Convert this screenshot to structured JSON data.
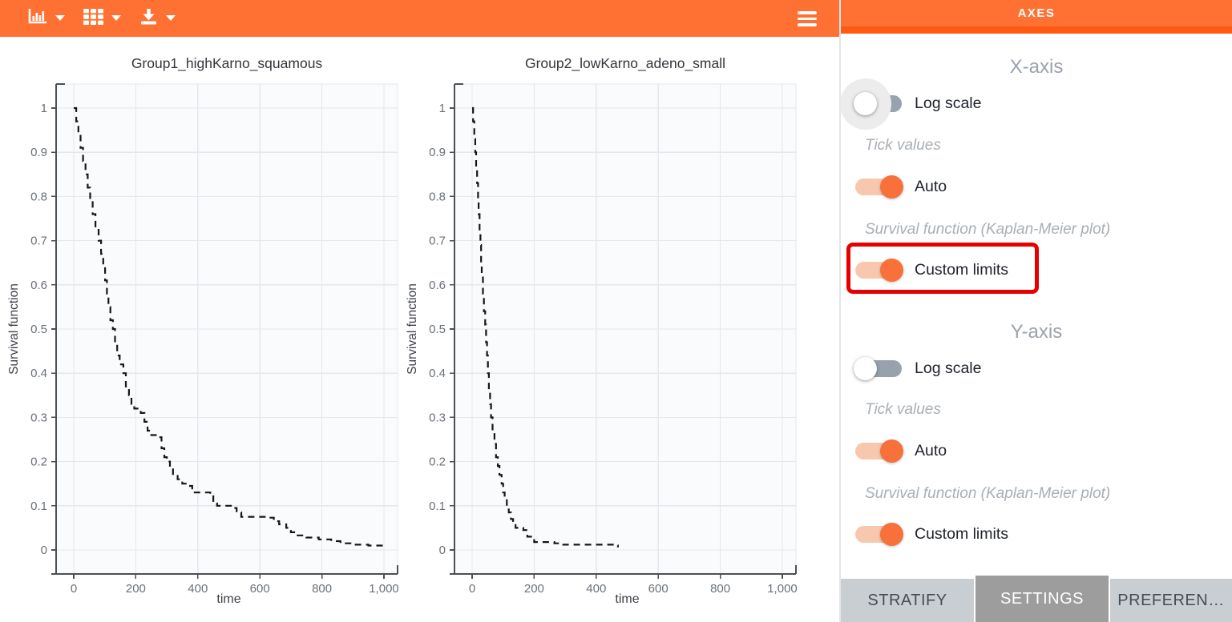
{
  "toolbar": {
    "icons": [
      {
        "name": "chart-type-icon",
        "dropdown": true
      },
      {
        "name": "layout-grid-icon",
        "dropdown": true
      },
      {
        "name": "download-icon",
        "dropdown": true
      },
      {
        "name": "menu-icon",
        "dropdown": false
      }
    ],
    "colors": {
      "background": "#ff7133",
      "icon": "#ffffff"
    }
  },
  "panel": {
    "header": "AXES",
    "colors": {
      "header_bg": "#ff7133",
      "header_strip": "#ff5a14",
      "toggle_on_knob": "#f8703a",
      "toggle_on_track": "#f7c7ae",
      "toggle_off_track": "#98a2ad",
      "highlight_border": "#e60000"
    },
    "x_axis": {
      "heading": "X-axis",
      "log_scale": {
        "label": "Log scale",
        "state": "off"
      },
      "tick_values_caption": "Tick values",
      "auto": {
        "label": "Auto",
        "state": "on"
      },
      "limits_caption": "Survival function (Kaplan-Meier plot)",
      "custom_limits": {
        "label": "Custom limits",
        "state": "on",
        "highlighted": true
      }
    },
    "y_axis": {
      "heading": "Y-axis",
      "log_scale": {
        "label": "Log scale",
        "state": "off"
      },
      "tick_values_caption": "Tick values",
      "auto": {
        "label": "Auto",
        "state": "on"
      },
      "limits_caption": "Survival function (Kaplan-Meier plot)",
      "custom_limits": {
        "label": "Custom limits",
        "state": "on",
        "highlighted": false
      }
    },
    "tabs": [
      {
        "label": "STRATIFY",
        "state": "inactive"
      },
      {
        "label": "SETTINGS",
        "state": "active"
      },
      {
        "label": "PREFEREN…",
        "state": "inactive"
      }
    ]
  },
  "chart_data": [
    {
      "type": "line",
      "subtype": "kaplan-meier-step",
      "title": "Group1_highKarno_squamous",
      "xlabel": "time",
      "ylabel": "Survival function",
      "xlim": [
        0,
        1000
      ],
      "ylim": [
        0,
        1
      ],
      "xticks": [
        0,
        200,
        400,
        600,
        800,
        1000
      ],
      "xtick_labels": [
        "0",
        "200",
        "400",
        "600",
        "800",
        "1,000"
      ],
      "yticks": [
        0,
        0.1,
        0.2,
        0.3,
        0.4,
        0.5,
        0.6,
        0.7,
        0.8,
        0.9,
        1
      ],
      "ytick_labels": [
        "0",
        "0.1",
        "0.2",
        "0.3",
        "0.4",
        "0.5",
        "0.6",
        "0.7",
        "0.8",
        "0.9",
        "1"
      ],
      "grid": true,
      "line_color": "#161616",
      "line_style": "dashed",
      "steps": [
        [
          0,
          1
        ],
        [
          8,
          0.97
        ],
        [
          15,
          0.94
        ],
        [
          22,
          0.91
        ],
        [
          30,
          0.88
        ],
        [
          38,
          0.85
        ],
        [
          45,
          0.82
        ],
        [
          53,
          0.79
        ],
        [
          61,
          0.76
        ],
        [
          70,
          0.73
        ],
        [
          80,
          0.7
        ],
        [
          88,
          0.67
        ],
        [
          95,
          0.64
        ],
        [
          101,
          0.61
        ],
        [
          107,
          0.58
        ],
        [
          112,
          0.55
        ],
        [
          118,
          0.52
        ],
        [
          126,
          0.5
        ],
        [
          133,
          0.47
        ],
        [
          140,
          0.44
        ],
        [
          148,
          0.42
        ],
        [
          160,
          0.4
        ],
        [
          168,
          0.37
        ],
        [
          178,
          0.35
        ],
        [
          186,
          0.33
        ],
        [
          195,
          0.32
        ],
        [
          216,
          0.31
        ],
        [
          228,
          0.29
        ],
        [
          238,
          0.27
        ],
        [
          250,
          0.26
        ],
        [
          270,
          0.255
        ],
        [
          283,
          0.23
        ],
        [
          292,
          0.21
        ],
        [
          300,
          0.2
        ],
        [
          310,
          0.185
        ],
        [
          320,
          0.17
        ],
        [
          335,
          0.16
        ],
        [
          350,
          0.15
        ],
        [
          365,
          0.145
        ],
        [
          382,
          0.135
        ],
        [
          390,
          0.13
        ],
        [
          440,
          0.125
        ],
        [
          450,
          0.105
        ],
        [
          462,
          0.1
        ],
        [
          510,
          0.095
        ],
        [
          525,
          0.085
        ],
        [
          540,
          0.075
        ],
        [
          620,
          0.073
        ],
        [
          645,
          0.065
        ],
        [
          662,
          0.058
        ],
        [
          685,
          0.05
        ],
        [
          700,
          0.04
        ],
        [
          715,
          0.033
        ],
        [
          750,
          0.028
        ],
        [
          790,
          0.024
        ],
        [
          830,
          0.02
        ],
        [
          860,
          0.015
        ],
        [
          900,
          0.012
        ],
        [
          950,
          0.01
        ],
        [
          1000,
          0.009
        ]
      ]
    },
    {
      "type": "line",
      "subtype": "kaplan-meier-step",
      "title": "Group2_lowKarno_adeno_small",
      "xlabel": "time",
      "ylabel": "Survival function",
      "xlim": [
        0,
        1000
      ],
      "ylim": [
        0,
        1
      ],
      "xticks": [
        0,
        200,
        400,
        600,
        800,
        1000
      ],
      "xtick_labels": [
        "0",
        "200",
        "400",
        "600",
        "800",
        "1,000"
      ],
      "yticks": [
        0,
        0.1,
        0.2,
        0.3,
        0.4,
        0.5,
        0.6,
        0.7,
        0.8,
        0.9,
        1
      ],
      "ytick_labels": [
        "0",
        "0.1",
        "0.2",
        "0.3",
        "0.4",
        "0.5",
        "0.6",
        "0.7",
        "0.8",
        "0.9",
        "1"
      ],
      "grid": true,
      "line_color": "#161616",
      "line_style": "dashed",
      "steps": [
        [
          0,
          1
        ],
        [
          3,
          0.97
        ],
        [
          7,
          0.93
        ],
        [
          10,
          0.9
        ],
        [
          13,
          0.86
        ],
        [
          16,
          0.83
        ],
        [
          19,
          0.79
        ],
        [
          21,
          0.76
        ],
        [
          24,
          0.72
        ],
        [
          27,
          0.69
        ],
        [
          29,
          0.65
        ],
        [
          31,
          0.62
        ],
        [
          35,
          0.58
        ],
        [
          38,
          0.54
        ],
        [
          42,
          0.51
        ],
        [
          45,
          0.47
        ],
        [
          48,
          0.44
        ],
        [
          51,
          0.4
        ],
        [
          54,
          0.36
        ],
        [
          58,
          0.33
        ],
        [
          61,
          0.3
        ],
        [
          66,
          0.27
        ],
        [
          72,
          0.24
        ],
        [
          77,
          0.21
        ],
        [
          83,
          0.19
        ],
        [
          88,
          0.17
        ],
        [
          95,
          0.15
        ],
        [
          100,
          0.13
        ],
        [
          105,
          0.115
        ],
        [
          112,
          0.1
        ],
        [
          118,
          0.085
        ],
        [
          125,
          0.07
        ],
        [
          132,
          0.06
        ],
        [
          140,
          0.05
        ],
        [
          165,
          0.045
        ],
        [
          178,
          0.03
        ],
        [
          190,
          0.025
        ],
        [
          200,
          0.018
        ],
        [
          265,
          0.015
        ],
        [
          280,
          0.012
        ],
        [
          460,
          0.01
        ],
        [
          470,
          0.006
        ]
      ]
    }
  ]
}
